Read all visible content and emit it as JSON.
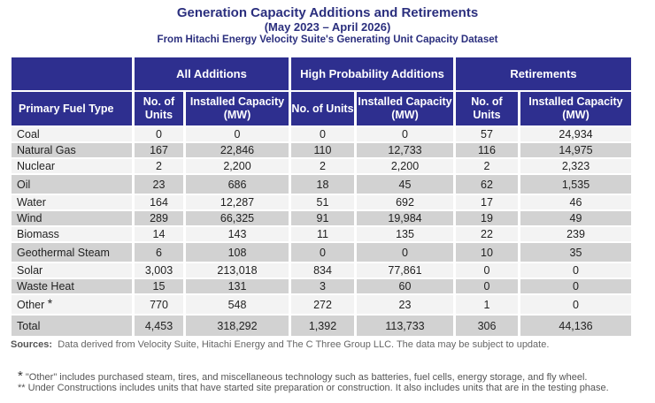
{
  "title": "Generation Capacity Additions and Retirements",
  "subtitle": "(May 2023 – April 2026)",
  "source_line": "From Hitachi Energy Velocity Suite's Generating Unit Capacity Dataset",
  "colors": {
    "header_bg": "#2e2f8f",
    "title": "#2b2f7e",
    "row_light": "#f3f3f3",
    "row_dark": "#d2d2d2"
  },
  "table": {
    "groups": [
      "All Additions",
      "High Probability Additions",
      "Retirements"
    ],
    "first_col": "Primary Fuel Type",
    "sub": {
      "units": "No. of Units",
      "capacity": "Installed Capacity (MW)"
    },
    "rows": [
      {
        "fuel": "Coal",
        "v": [
          "0",
          "0",
          "0",
          "0",
          "57",
          "24,934"
        ]
      },
      {
        "fuel": "Natural Gas",
        "v": [
          "167",
          "22,846",
          "110",
          "12,733",
          "116",
          "14,975"
        ]
      },
      {
        "fuel": "Nuclear",
        "v": [
          "2",
          "2,200",
          "2",
          "2,200",
          "2",
          "2,323"
        ]
      },
      {
        "fuel": "Oil",
        "v": [
          "23",
          "686",
          "18",
          "45",
          "62",
          "1,535"
        ]
      },
      {
        "fuel": "Water",
        "v": [
          "164",
          "12,287",
          "51",
          "692",
          "17",
          "46"
        ]
      },
      {
        "fuel": "Wind",
        "v": [
          "289",
          "66,325",
          "91",
          "19,984",
          "19",
          "49"
        ]
      },
      {
        "fuel": "Biomass",
        "v": [
          "14",
          "143",
          "11",
          "135",
          "22",
          "239"
        ]
      },
      {
        "fuel": "Geothermal Steam",
        "v": [
          "6",
          "108",
          "0",
          "0",
          "10",
          "35"
        ]
      },
      {
        "fuel": "Solar",
        "v": [
          "3,003",
          "213,018",
          "834",
          "77,861",
          "0",
          "0"
        ]
      },
      {
        "fuel": "Waste Heat",
        "v": [
          "15",
          "131",
          "3",
          "60",
          "0",
          "0"
        ]
      },
      {
        "fuel": "Other",
        "mark": "*",
        "v": [
          "770",
          "548",
          "272",
          "23",
          "1",
          "0"
        ]
      },
      {
        "fuel": "Total",
        "v": [
          "4,453",
          "318,292",
          "1,392",
          "113,733",
          "306",
          "44,136"
        ]
      }
    ]
  },
  "sources": {
    "label": "Sources:",
    "text": "Data derived from Velocity Suite, Hitachi Energy and The C Three Group LLC.  The data may be subject to update."
  },
  "footnotes": [
    {
      "mark": "*",
      "text": "\"Other\" includes purchased steam, tires, and miscellaneous technology such as batteries, fuel cells, energy storage, and fly wheel."
    },
    {
      "mark": "**",
      "text": "Under Constructions includes units that have started site preparation or construction.  It also includes units that are in the testing phase."
    }
  ]
}
